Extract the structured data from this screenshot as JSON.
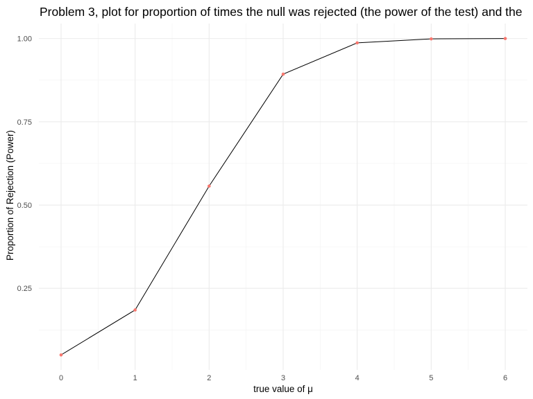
{
  "chart_data": {
    "type": "line",
    "title": "Problem 3, plot for proportion of times the null was rejected (the power of the test) and the",
    "xlabel": "true value of μ",
    "ylabel": "Proportion of Rejection (Power)",
    "x": [
      0,
      1,
      2,
      3,
      4,
      5,
      6
    ],
    "series": [
      {
        "name": "Power",
        "values": [
          0.05,
          0.185,
          0.557,
          0.893,
          0.987,
          0.999,
          1.0
        ]
      }
    ],
    "xlim": [
      -0.3,
      6.3
    ],
    "ylim": [
      0.005,
      1.045
    ],
    "x_ticks": [
      0,
      1,
      2,
      3,
      4,
      5,
      6
    ],
    "x_tick_labels": [
      "0",
      "1",
      "2",
      "3",
      "4",
      "5",
      "6"
    ],
    "y_ticks": [
      0.25,
      0.5,
      0.75,
      1.0
    ],
    "y_tick_labels": [
      "0.25",
      "0.50",
      "0.75",
      "1.00"
    ],
    "grid": true,
    "legend": "none",
    "line_color": "#000000",
    "point_color": "#F8766D"
  }
}
